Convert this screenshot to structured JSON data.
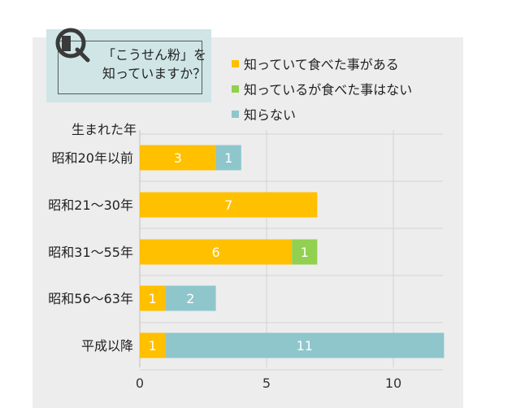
{
  "question": {
    "line1": "「こうせん粉」を",
    "line2": "知っていますか？"
  },
  "chart_data": {
    "type": "bar",
    "orientation": "horizontal",
    "stacked": true,
    "ytitle": "生まれた年",
    "categories": [
      "昭和20年以前",
      "昭和21～30年",
      "昭和31～55年",
      "昭和56～63年",
      "平成以降"
    ],
    "series": [
      {
        "name": "知っていて食べた事がある",
        "color": "#ffc000",
        "values": [
          3,
          7,
          6,
          1,
          1
        ]
      },
      {
        "name": "知っているが食べた事はない",
        "color": "#92d050",
        "values": [
          0,
          0,
          1,
          0,
          0
        ]
      },
      {
        "name": "知らない",
        "color": "#8ec6cc",
        "values": [
          1,
          0,
          0,
          2,
          11
        ]
      }
    ],
    "xlim": [
      0,
      12
    ],
    "xticks": [
      0,
      5,
      10
    ],
    "grid": true,
    "legend": "top-right"
  }
}
